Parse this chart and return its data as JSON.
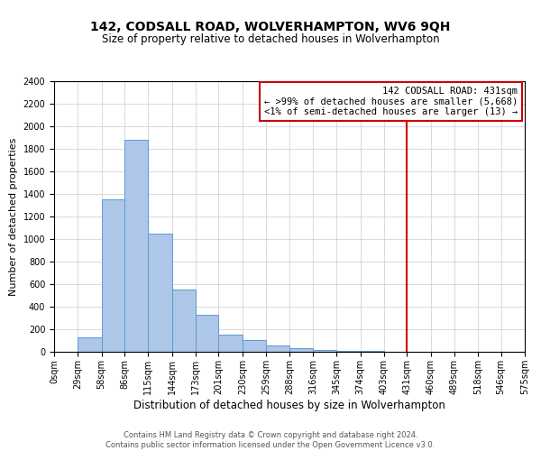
{
  "title": "142, CODSALL ROAD, WOLVERHAMPTON, WV6 9QH",
  "subtitle": "Size of property relative to detached houses in Wolverhampton",
  "xlabel": "Distribution of detached houses by size in Wolverhampton",
  "ylabel": "Number of detached properties",
  "bin_edges": [
    0,
    29,
    58,
    86,
    115,
    144,
    173,
    201,
    230,
    259,
    288,
    316,
    345,
    374,
    403,
    431,
    460,
    489,
    518,
    546,
    575
  ],
  "bar_heights": [
    0,
    125,
    1350,
    1880,
    1045,
    550,
    330,
    155,
    105,
    60,
    35,
    15,
    10,
    5,
    0,
    0,
    0,
    0,
    0,
    0
  ],
  "bar_color": "#AEC6E8",
  "bar_edge_color": "#5B9BD5",
  "vline_x": 431,
  "vline_color": "#CC0000",
  "ylim": [
    0,
    2400
  ],
  "yticks": [
    0,
    200,
    400,
    600,
    800,
    1000,
    1200,
    1400,
    1600,
    1800,
    2000,
    2200,
    2400
  ],
  "xtick_labels": [
    "0sqm",
    "29sqm",
    "58sqm",
    "86sqm",
    "115sqm",
    "144sqm",
    "173sqm",
    "201sqm",
    "230sqm",
    "259sqm",
    "288sqm",
    "316sqm",
    "345sqm",
    "374sqm",
    "403sqm",
    "431sqm",
    "460sqm",
    "489sqm",
    "518sqm",
    "546sqm",
    "575sqm"
  ],
  "annotation_title": "142 CODSALL ROAD: 431sqm",
  "annotation_line1": "← >99% of detached houses are smaller (5,668)",
  "annotation_line2": "<1% of semi-detached houses are larger (13) →",
  "annotation_box_color": "#FFFFFF",
  "annotation_box_edge_color": "#CC0000",
  "footnote1": "Contains HM Land Registry data © Crown copyright and database right 2024.",
  "footnote2": "Contains public sector information licensed under the Open Government Licence v3.0.",
  "background_color": "#FFFFFF",
  "grid_color": "#CCCCCC",
  "title_fontsize": 10,
  "subtitle_fontsize": 8.5,
  "xlabel_fontsize": 8.5,
  "ylabel_fontsize": 8,
  "tick_fontsize": 7,
  "annotation_fontsize": 7.5,
  "footnote_fontsize": 6
}
